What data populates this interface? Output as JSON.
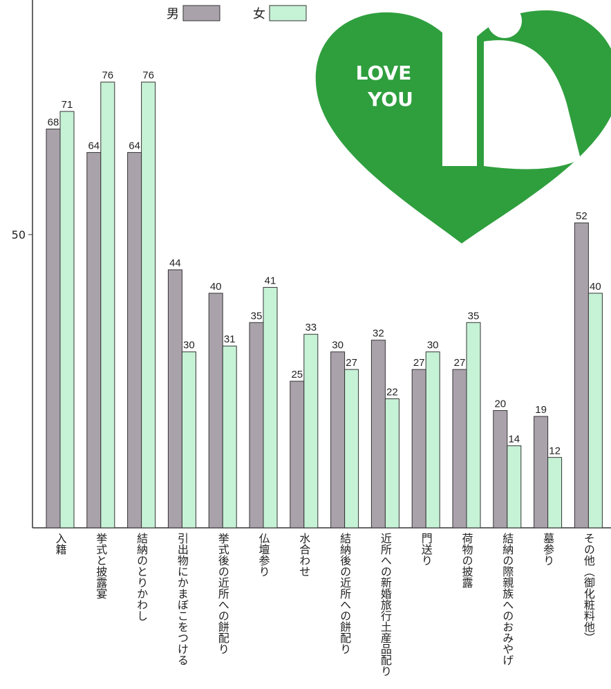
{
  "chart_data": {
    "type": "bar",
    "categories": [
      "入籍",
      "挙式と披露宴",
      "結納のとりかわし",
      "引出物にかまぼこをつける",
      "挙式後の近所への餅配り",
      "仏壇参り",
      "水合わせ",
      "結納後の近所への餅配り",
      "近所への新婚旅行土産品配り",
      "門送り",
      "荷物の披露",
      "結納の際親族へのおみやげ",
      "墓参り",
      "その他（御化粧料他）"
    ],
    "series": [
      {
        "name": "男",
        "color": "#aaa2ab",
        "values": [
          68,
          64,
          64,
          44,
          40,
          35,
          25,
          30,
          32,
          27,
          27,
          20,
          19,
          52
        ]
      },
      {
        "name": "女",
        "color": "#c6f2d6",
        "values": [
          71,
          76,
          76,
          30,
          31,
          41,
          33,
          27,
          22,
          30,
          35,
          14,
          12,
          40
        ]
      }
    ],
    "ylim": [
      0,
      90
    ],
    "yticks": [
      50
    ],
    "grid": false,
    "annotations": [
      "LOVE",
      "YOU"
    ]
  }
}
